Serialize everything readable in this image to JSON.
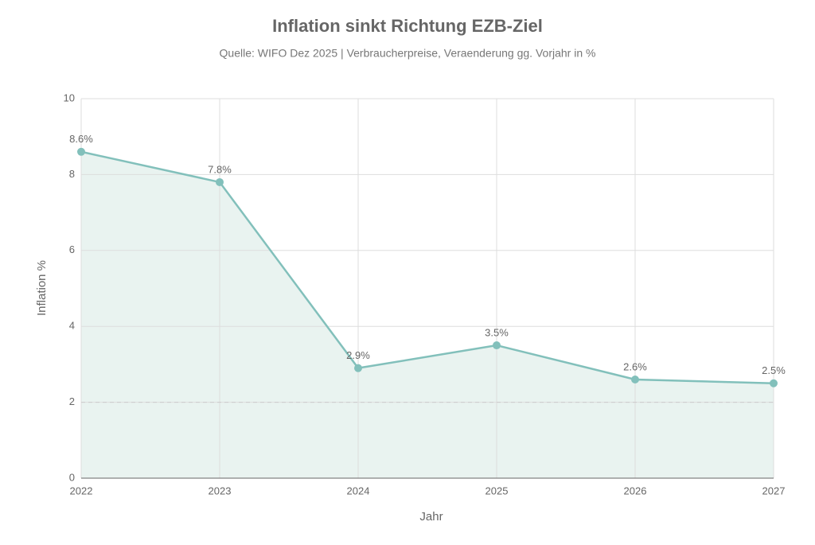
{
  "chart_data": {
    "type": "line",
    "title": "Inflation sinkt Richtung EZB-Ziel",
    "subtitle": "Quelle: WIFO Dez 2025 | Verbraucherpreise, Veraenderung gg. Vorjahr in %",
    "x_label": "Jahr",
    "y_label": "Inflation %",
    "x": [
      2022,
      2023,
      2024,
      2025,
      2026,
      2027
    ],
    "values": [
      8.6,
      7.8,
      2.9,
      3.5,
      2.6,
      2.5
    ],
    "value_labels": [
      "8.6%",
      "7.8%",
      "2.9%",
      "3.5%",
      "2.6%",
      "2.5%"
    ],
    "color": "#82c0bb",
    "area_color": "#e9f3f0",
    "xlim": [
      2022,
      2027
    ],
    "xticks": [
      2022,
      2023,
      2024,
      2025,
      2026,
      2027
    ],
    "ylim": [
      0,
      10
    ],
    "yticks": [
      0,
      2,
      4,
      6,
      8,
      10
    ],
    "grid": true,
    "target_line": 2
  }
}
